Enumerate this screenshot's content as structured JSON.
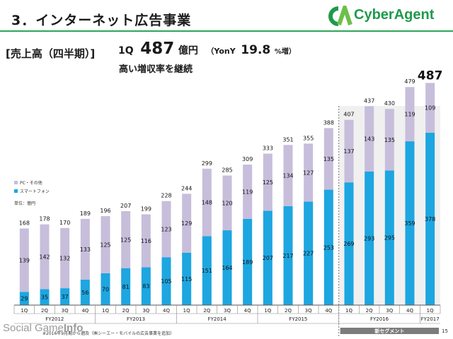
{
  "header": {
    "title": "3．インターネット広告事業",
    "logo_text": "CyberAgent"
  },
  "section_label": "[売上高（四半期）]",
  "headline": {
    "quarter": "1Q",
    "value": "487",
    "unit": "億円",
    "yoy_label": "（YonY",
    "yoy_value": "19.8",
    "yoy_suffix": "%増）"
  },
  "subheading": "高い増収率を継続",
  "chart_data": {
    "type": "bar",
    "stacked": true,
    "categories": [
      "1Q",
      "2Q",
      "3Q",
      "4Q",
      "1Q",
      "2Q",
      "3Q",
      "4Q",
      "1Q",
      "2Q",
      "3Q",
      "4Q",
      "1Q",
      "2Q",
      "3Q",
      "4Q",
      "1Q",
      "2Q",
      "3Q",
      "4Q",
      "1Q"
    ],
    "fiscal_years": [
      {
        "label": "FY2012",
        "quarters": 4
      },
      {
        "label": "FY2013",
        "quarters": 4
      },
      {
        "label": "FY2014",
        "quarters": 4
      },
      {
        "label": "FY2015",
        "quarters": 4
      },
      {
        "label": "FY2016",
        "quarters": 4
      },
      {
        "label": "FY2017",
        "quarters": 1
      }
    ],
    "series": [
      {
        "name": "スマートフォン",
        "color": "#1da6e0",
        "values": [
          29,
          35,
          37,
          56,
          70,
          81,
          83,
          105,
          115,
          151,
          164,
          189,
          207,
          217,
          227,
          253,
          269,
          293,
          295,
          359,
          378
        ]
      },
      {
        "name": "PC・その他",
        "color": "#c7bedb",
        "values": [
          139,
          142,
          132,
          133,
          125,
          125,
          116,
          123,
          129,
          148,
          120,
          119,
          125,
          134,
          127,
          135,
          137,
          143,
          135,
          119,
          109
        ]
      }
    ],
    "totals": [
      168,
      178,
      170,
      189,
      196,
      207,
      199,
      228,
      244,
      299,
      285,
      309,
      333,
      351,
      355,
      388,
      407,
      437,
      430,
      479,
      487
    ],
    "highlight_last_total": true,
    "ylim": [
      0,
      500
    ],
    "unit_label": "単位：億円",
    "new_segment": {
      "label": "新セグメント",
      "from_index": 16
    },
    "background_color": "#ffffff",
    "segment_background_color": "#f0f0f0"
  },
  "footnote": "※2016年9月期から遡及（㈱シーエー・モバイルの広告事業を追加）",
  "page_number": "15",
  "watermark": {
    "text_main": "Social Game",
    "text_tail": "Info"
  }
}
